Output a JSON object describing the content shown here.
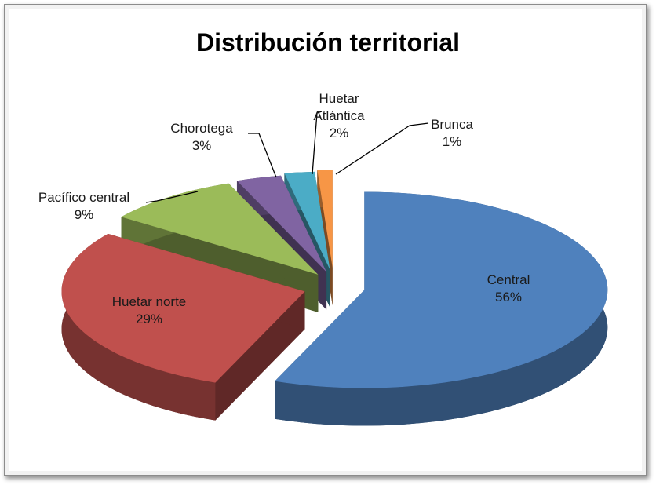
{
  "chart_data": {
    "type": "pie",
    "title": "Distribución territorial",
    "categories": [
      "Central",
      "Huetar norte",
      "Pacífico central",
      "Chorotega",
      "Huetar Atlántica",
      "Brunca"
    ],
    "values": [
      56,
      29,
      9,
      3,
      2,
      1
    ],
    "value_labels": [
      "56%",
      "29%",
      "9%",
      "3%",
      "2%",
      "1%"
    ],
    "colors": [
      "#4f81bd",
      "#c0504d",
      "#9bbb59",
      "#8064a2",
      "#4bacc6",
      "#f79646"
    ]
  }
}
